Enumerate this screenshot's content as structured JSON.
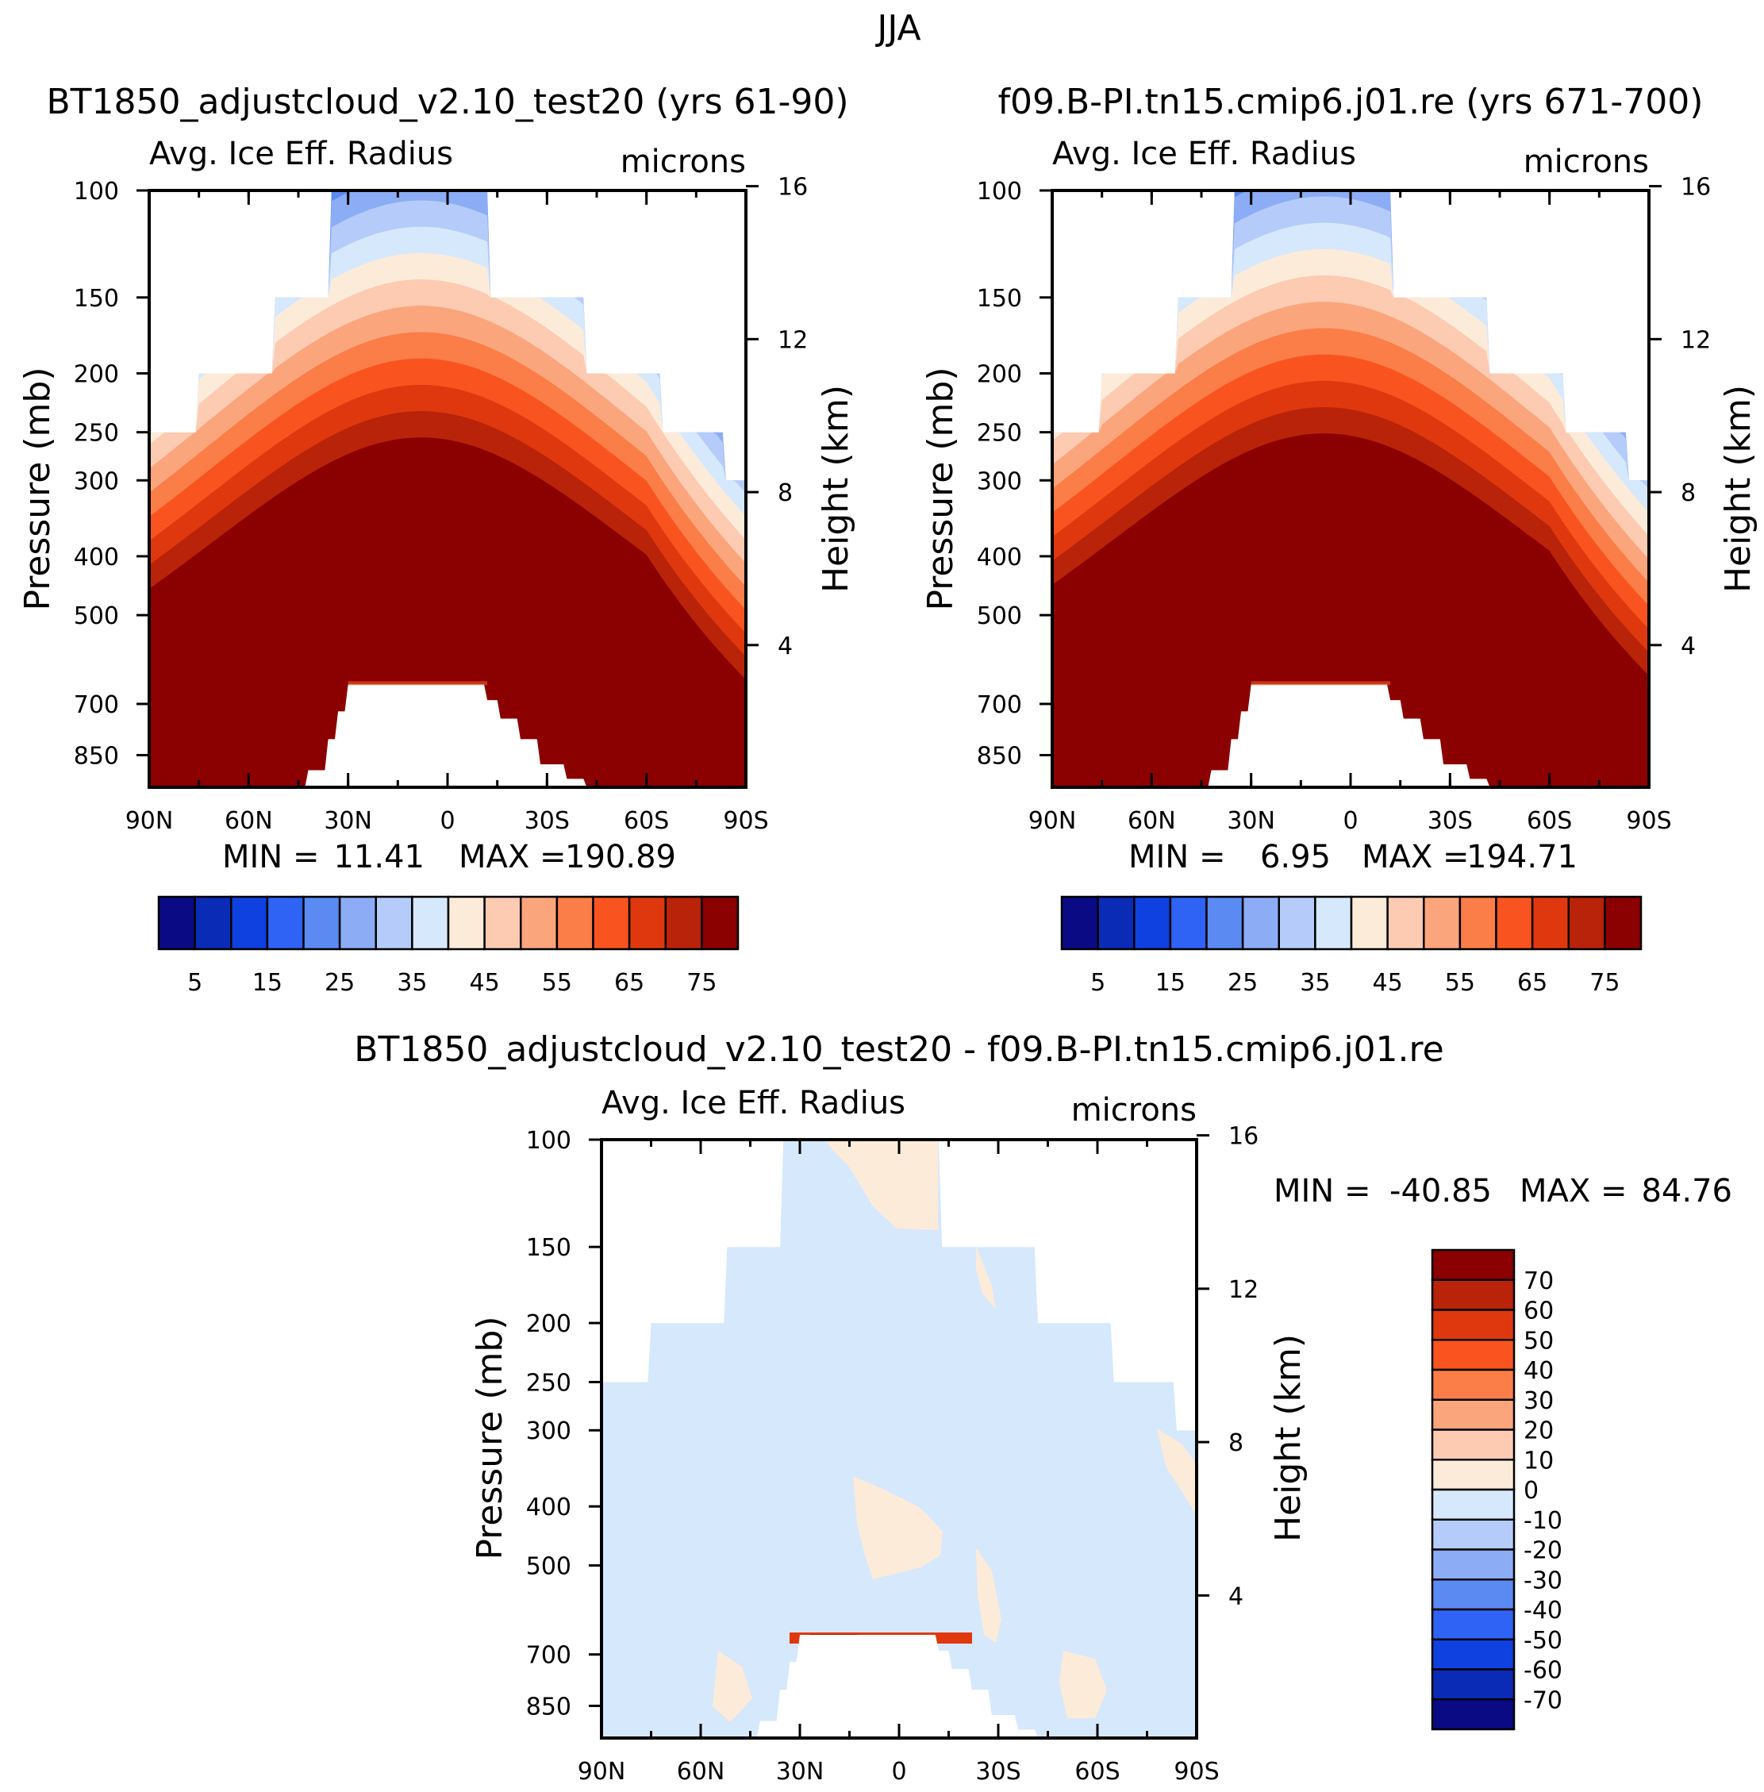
{
  "figure_title": "JJA",
  "colors": {
    "abs_levels": [
      "#0a0a85",
      "#0a2bb5",
      "#0f40e0",
      "#2f63f5",
      "#5b8af3",
      "#8cadf5",
      "#b5ccfa",
      "#d6e8fb",
      "#fdebd9",
      "#fccbb1",
      "#fba57d",
      "#fb7d47",
      "#f9541f",
      "#e0380e",
      "#b82309",
      "#8b0000"
    ],
    "diff_levels": [
      "#0a0a85",
      "#0a2bb5",
      "#0f40e0",
      "#2f63f5",
      "#5b8af3",
      "#8cadf5",
      "#b5ccfa",
      "#d6e8fb",
      "#fdebd9",
      "#fccbb1",
      "#fba57d",
      "#fb7d47",
      "#f9541f",
      "#e0380e",
      "#b82309",
      "#8b0000"
    ]
  },
  "chart_data": [
    {
      "type": "heatmap",
      "id": "case",
      "title": "BT1850_adjustcloud_v2.10_test20 (yrs 61-90)",
      "variable": "Avg. Ice Eff. Radius",
      "units": "microns",
      "xlabel": "",
      "ylabel": "Pressure (mb)",
      "y2label": "Height (km)",
      "xticks": [
        "90N",
        "60N",
        "30N",
        "0",
        "30S",
        "60S",
        "90S"
      ],
      "yticks": [
        "100",
        "150",
        "200",
        "250",
        "300",
        "400",
        "500",
        "700",
        "850"
      ],
      "y2ticks": [
        "16",
        "12",
        "8",
        "4"
      ],
      "min_label": "MIN =",
      "min_value": "11.41",
      "max_label": "MAX =",
      "max_value": "190.89",
      "colorbar_labels": [
        "5",
        "15",
        "25",
        "35",
        "45",
        "55",
        "65",
        "75"
      ],
      "levels": [
        5,
        10,
        15,
        20,
        25,
        30,
        35,
        40,
        45,
        50,
        55,
        60,
        65,
        70,
        75
      ],
      "field": "absolute"
    },
    {
      "type": "heatmap",
      "id": "control",
      "title": "f09.B-PI.tn15.cmip6.j01.re (yrs 671-700)",
      "variable": "Avg. Ice Eff. Radius",
      "units": "microns",
      "xlabel": "",
      "ylabel": "Pressure (mb)",
      "y2label": "Height (km)",
      "xticks": [
        "90N",
        "60N",
        "30N",
        "0",
        "30S",
        "60S",
        "90S"
      ],
      "yticks": [
        "100",
        "150",
        "200",
        "250",
        "300",
        "400",
        "500",
        "700",
        "850"
      ],
      "y2ticks": [
        "16",
        "12",
        "8",
        "4"
      ],
      "min_label": "MIN =",
      "min_value": "6.95",
      "max_label": "MAX =",
      "max_value": "194.71",
      "colorbar_labels": [
        "5",
        "15",
        "25",
        "35",
        "45",
        "55",
        "65",
        "75"
      ],
      "levels": [
        5,
        10,
        15,
        20,
        25,
        30,
        35,
        40,
        45,
        50,
        55,
        60,
        65,
        70,
        75
      ],
      "field": "absolute"
    },
    {
      "type": "heatmap",
      "id": "difference",
      "title": "BT1850_adjustcloud_v2.10_test20 - f09.B-PI.tn15.cmip6.j01.re",
      "variable": "Avg. Ice Eff. Radius",
      "units": "microns",
      "xlabel": "",
      "ylabel": "Pressure (mb)",
      "y2label": "Height (km)",
      "xticks": [
        "90N",
        "60N",
        "30N",
        "0",
        "30S",
        "60S",
        "90S"
      ],
      "yticks": [
        "100",
        "150",
        "200",
        "250",
        "300",
        "400",
        "500",
        "700",
        "850"
      ],
      "y2ticks": [
        "16",
        "12",
        "8",
        "4"
      ],
      "min_label": "MIN =",
      "min_value": "-40.85",
      "max_label": "MAX =",
      "max_value": "84.76",
      "colorbar_labels": [
        "70",
        "60",
        "50",
        "40",
        "30",
        "20",
        "10",
        "0",
        "-10",
        "-20",
        "-30",
        "-40",
        "-50",
        "-60",
        "-70"
      ],
      "levels": [
        -70,
        -60,
        -50,
        -40,
        -30,
        -20,
        -10,
        0,
        10,
        20,
        30,
        40,
        50,
        60,
        70
      ],
      "field": "difference"
    }
  ]
}
